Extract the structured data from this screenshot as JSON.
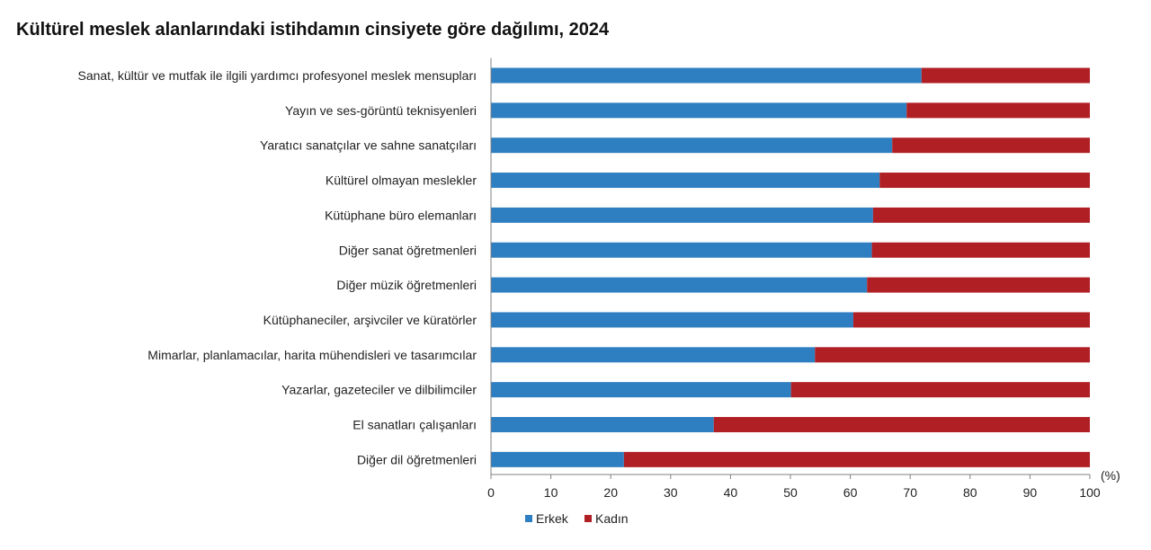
{
  "chart_data": {
    "type": "bar",
    "orientation": "horizontal",
    "stacked": true,
    "title": "Kültürel meslek alanlarındaki istihdamın cinsiyete göre dağılımı, 2024",
    "unit_label": "(%)",
    "xlim": [
      0,
      100
    ],
    "x_ticks": [
      0,
      10,
      20,
      30,
      40,
      50,
      60,
      70,
      80,
      90,
      100
    ],
    "grid": false,
    "legend_position": "bottom-left",
    "categories": [
      "Sanat, kültür ve mutfak ile ilgili yardımcı profesyonel meslek mensupları",
      "Yayın ve ses-görüntü teknisyenleri",
      "Yaratıcı sanatçılar ve sahne sanatçıları",
      "Kültürel olmayan meslekler",
      "Kütüphane büro elemanları",
      "Diğer sanat öğretmenleri",
      "Diğer müzik öğretmenleri",
      "Kütüphaneciler, arşivciler ve küratörler",
      "Mimarlar, planlamacılar, harita mühendisleri ve tasarımcılar",
      "Yazarlar, gazeteciler ve dilbilimciler",
      "El sanatları çalışanları",
      "Diğer dil öğretmenleri"
    ],
    "series": [
      {
        "name": "Erkek",
        "color": "#2e7fc1",
        "values": [
          71.9,
          69.4,
          67.0,
          64.9,
          63.8,
          63.6,
          62.8,
          60.5,
          54.1,
          50.1,
          37.2,
          22.2
        ]
      },
      {
        "name": "Kadın",
        "color": "#b01f24",
        "values": [
          28.1,
          30.6,
          33.0,
          35.1,
          36.2,
          36.4,
          37.2,
          39.5,
          45.9,
          49.9,
          62.8,
          77.8
        ]
      }
    ]
  }
}
